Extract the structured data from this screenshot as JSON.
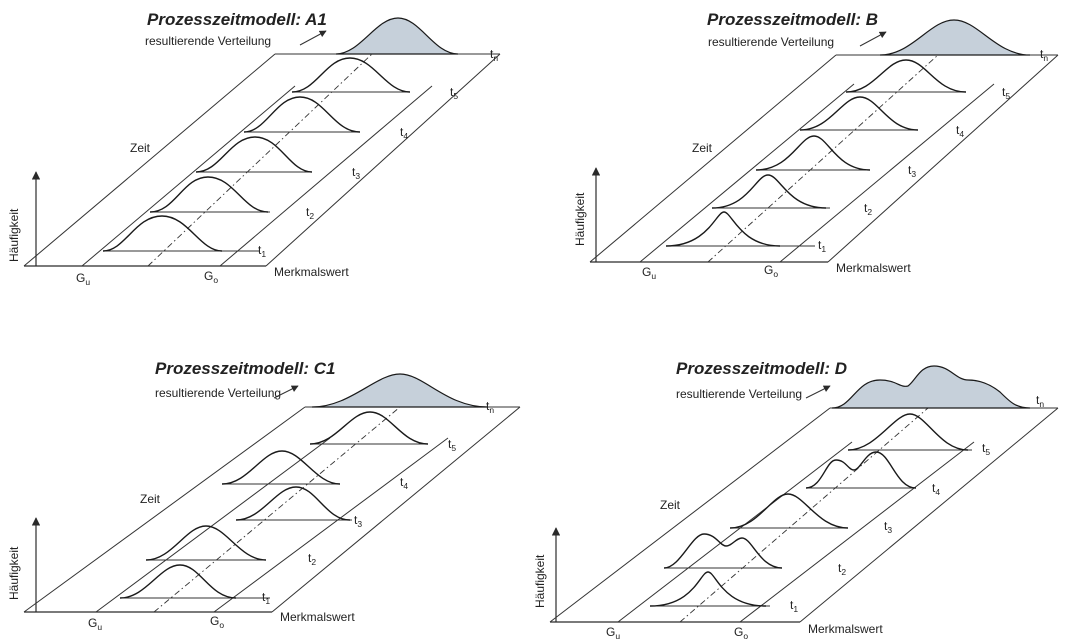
{
  "panels": [
    {
      "title": "Prozesszeitmodell: A1",
      "subtitle": "resultierende Verteilung",
      "y_axis_label": "Häufigkeit",
      "time_axis_label": "Zeit",
      "x_axis_label": "Merkmalswert",
      "lower_limit": "G",
      "lower_limit_sub": "u",
      "upper_limit": "G",
      "upper_limit_sub": "o",
      "time_labels": [
        {
          "main": "t",
          "sub": "1"
        },
        {
          "main": "t",
          "sub": "2"
        },
        {
          "main": "t",
          "sub": "3"
        },
        {
          "main": "t",
          "sub": "4"
        },
        {
          "main": "t",
          "sub": "5"
        },
        {
          "main": "t",
          "sub": "n"
        }
      ]
    },
    {
      "title": "Prozesszeitmodell: B",
      "subtitle": "resultierende Verteilung",
      "y_axis_label": "Häufigkeit",
      "time_axis_label": "Zeit",
      "x_axis_label": "Merkmalswert",
      "lower_limit": "G",
      "lower_limit_sub": "u",
      "upper_limit": "G",
      "upper_limit_sub": "o",
      "time_labels": [
        {
          "main": "t",
          "sub": "1"
        },
        {
          "main": "t",
          "sub": "2"
        },
        {
          "main": "t",
          "sub": "3"
        },
        {
          "main": "t",
          "sub": "4"
        },
        {
          "main": "t",
          "sub": "5"
        },
        {
          "main": "t",
          "sub": "n"
        }
      ]
    },
    {
      "title": "Prozesszeitmodell: C1",
      "subtitle": "resultierende Verteilung",
      "y_axis_label": "Häufigkeit",
      "time_axis_label": "Zeit",
      "x_axis_label": "Merkmalswert",
      "lower_limit": "G",
      "lower_limit_sub": "u",
      "upper_limit": "G",
      "upper_limit_sub": "o",
      "time_labels": [
        {
          "main": "t",
          "sub": "1"
        },
        {
          "main": "t",
          "sub": "2"
        },
        {
          "main": "t",
          "sub": "3"
        },
        {
          "main": "t",
          "sub": "4"
        },
        {
          "main": "t",
          "sub": "5"
        },
        {
          "main": "t",
          "sub": "n"
        }
      ]
    },
    {
      "title": "Prozesszeitmodell: D",
      "subtitle": "resultierende Verteilung",
      "y_axis_label": "Häufigkeit",
      "time_axis_label": "Zeit",
      "x_axis_label": "Merkmalswert",
      "lower_limit": "G",
      "lower_limit_sub": "u",
      "upper_limit": "G",
      "upper_limit_sub": "o",
      "time_labels": [
        {
          "main": "t",
          "sub": "1"
        },
        {
          "main": "t",
          "sub": "2"
        },
        {
          "main": "t",
          "sub": "3"
        },
        {
          "main": "t",
          "sub": "4"
        },
        {
          "main": "t",
          "sub": "5"
        },
        {
          "main": "t",
          "sub": "n"
        }
      ]
    }
  ]
}
